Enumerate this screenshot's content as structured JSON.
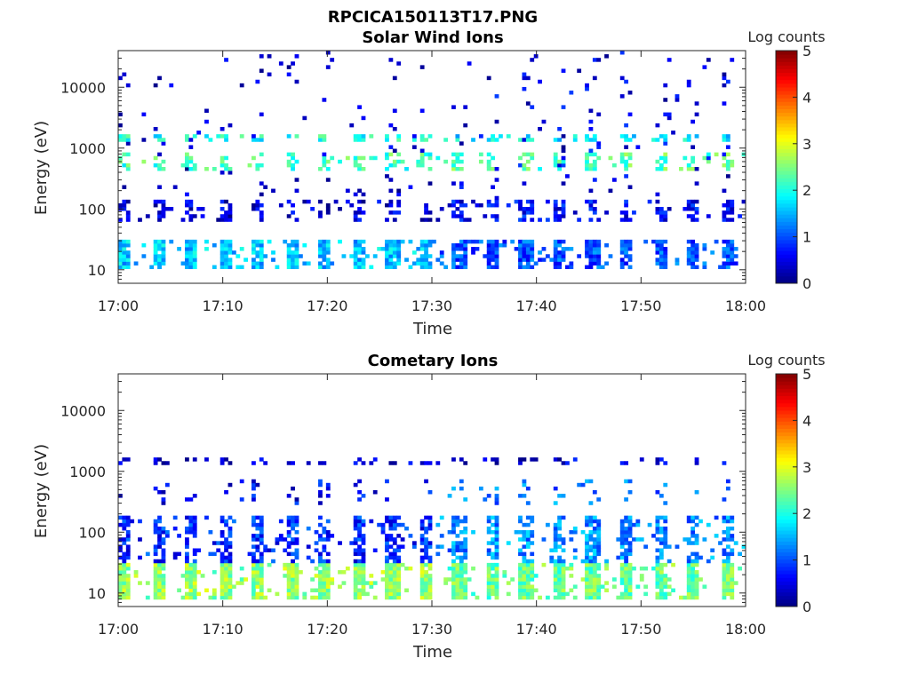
{
  "figure_title": "RPCICA150113T17.PNG",
  "colormap": "jet",
  "chart_data": [
    {
      "type": "heatmap",
      "title": "Solar Wind Ions",
      "xlabel": "Time",
      "ylabel": "Energy (eV)",
      "x_ticks": [
        "17:00",
        "17:10",
        "17:20",
        "17:30",
        "17:40",
        "17:50",
        "18:00"
      ],
      "x_range": [
        "17:00",
        "18:00"
      ],
      "y_scale": "log",
      "y_ticks": [
        "10",
        "100",
        "1000",
        "10000"
      ],
      "y_range": [
        6,
        40000
      ],
      "colorbar": {
        "label": "Log counts",
        "ticks": [
          "0",
          "1",
          "2",
          "3",
          "4",
          "5"
        ],
        "range": [
          0,
          5
        ]
      },
      "sweep_period_min": 3.2,
      "bands": [
        {
          "emin": 10,
          "emax": 30,
          "level_first_half": 1.6,
          "level_second_half": 1.0,
          "coverage": 0.9
        },
        {
          "emin": 1200,
          "emax": 1800,
          "level_first_half": 2.0,
          "level_second_half": 1.8,
          "coverage": 0.6
        },
        {
          "emin": 400,
          "emax": 800,
          "level_first_half": 2.2,
          "level_second_half": 2.3,
          "coverage": 0.5
        },
        {
          "emin": 60,
          "emax": 150,
          "level_first_half": 0.4,
          "level_second_half": 0.6,
          "coverage": 0.5
        },
        {
          "emin": 100,
          "emax": 40000,
          "level_first_half": 0.3,
          "level_second_half": 0.5,
          "coverage": 0.06
        }
      ]
    },
    {
      "type": "heatmap",
      "title": "Cometary Ions",
      "xlabel": "Time",
      "ylabel": "Energy (eV)",
      "x_ticks": [
        "17:00",
        "17:10",
        "17:20",
        "17:30",
        "17:40",
        "17:50",
        "18:00"
      ],
      "x_range": [
        "17:00",
        "18:00"
      ],
      "y_scale": "log",
      "y_ticks": [
        "10",
        "100",
        "1000",
        "10000"
      ],
      "y_range": [
        6,
        40000
      ],
      "colorbar": {
        "label": "Log counts",
        "ticks": [
          "0",
          "1",
          "2",
          "3",
          "4",
          "5"
        ],
        "range": [
          0,
          5
        ]
      },
      "sweep_period_min": 3.2,
      "bands": [
        {
          "emin": 8,
          "emax": 30,
          "level_first_half": 2.6,
          "level_second_half": 2.4,
          "coverage": 0.95
        },
        {
          "emin": 30,
          "emax": 200,
          "level_first_half": 0.8,
          "level_second_half": 1.3,
          "coverage": 0.65
        },
        {
          "emin": 1200,
          "emax": 1800,
          "level_first_half": 0.5,
          "level_second_half": 0.4,
          "coverage": 0.35
        },
        {
          "emin": 300,
          "emax": 700,
          "level_first_half": 0.6,
          "level_second_half": 1.2,
          "coverage": 0.15
        }
      ]
    }
  ]
}
